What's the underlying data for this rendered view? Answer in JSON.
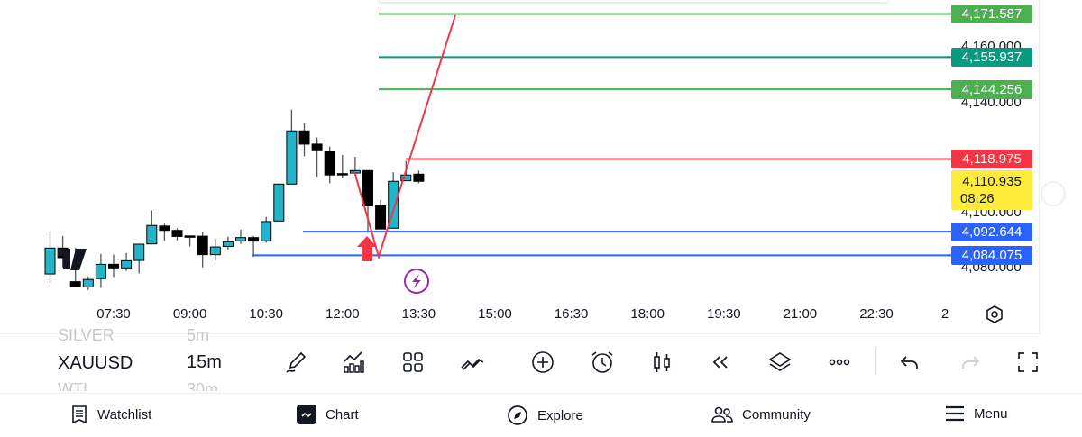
{
  "chart": {
    "price_scale": {
      "labels": [
        "4,160.000",
        "4,140.000",
        "4,100.000",
        "4,080.000"
      ],
      "values": [
        4160,
        4140,
        4100,
        4080
      ]
    },
    "time_axis": {
      "labels": [
        "07:30",
        "09:00",
        "10:30",
        "12:00",
        "13:30",
        "15:00",
        "16:30",
        "18:00",
        "19:30",
        "21:00",
        "22:30"
      ],
      "extra_label": "2"
    },
    "colors": {
      "up": "#22b5c9",
      "down": "#000000",
      "take_profit": "#4caf50",
      "teal": "#089981",
      "stop": "#f23645",
      "entry": "#2962ff",
      "current": "#ffeb3b"
    },
    "levels": [
      {
        "label": "4,171.587",
        "value": 4171.587,
        "color": "#4caf50"
      },
      {
        "label": "4,155.937",
        "value": 4155.937,
        "color": "#089981"
      },
      {
        "label": "4,144.256",
        "value": 4144.256,
        "color": "#4caf50"
      },
      {
        "label": "4,118.975",
        "value": 4118.975,
        "color": "#f23645"
      },
      {
        "label": "4,092.644",
        "value": 4092.644,
        "color": "#2962ff"
      },
      {
        "label": "4,084.075",
        "value": 4084.075,
        "color": "#2962ff"
      }
    ],
    "current_price": {
      "value": "4,110.935",
      "countdown": "08:26"
    },
    "candles_start": "06:15",
    "interval_minutes": 15,
    "candles": [
      [
        4077.3,
        4092.8,
        4074.0,
        4086.7
      ],
      [
        4086.7,
        4091.1,
        4079.7,
        4083.2
      ],
      [
        4074.5,
        4086.8,
        4072.7,
        4072.7
      ],
      [
        4072.6,
        4076.4,
        4071.5,
        4075.3
      ],
      [
        4075.6,
        4084.6,
        4072.3,
        4080.8
      ],
      [
        4080.8,
        4084.3,
        4076.2,
        4079.5
      ],
      [
        4079.5,
        4084.9,
        4078.4,
        4082.1
      ],
      [
        4082.2,
        4088.1,
        4077.5,
        4088.1
      ],
      [
        4088.2,
        4100.4,
        4088.2,
        4094.9
      ],
      [
        4094.7,
        4095.5,
        4089.3,
        4093.1
      ],
      [
        4093.1,
        4093.9,
        4089.5,
        4090.9
      ],
      [
        4091.1,
        4091.1,
        4087.3,
        4091.0
      ],
      [
        4091.0,
        4092.6,
        4079.7,
        4084.3
      ],
      [
        4084.3,
        4089.9,
        4082.1,
        4087.1
      ],
      [
        4087.3,
        4090.8,
        4086.2,
        4089.0
      ],
      [
        4089.3,
        4093.4,
        4088.2,
        4090.5
      ],
      [
        4090.5,
        4091.1,
        4083.5,
        4089.2
      ],
      [
        4089.3,
        4098.0,
        4088.6,
        4096.3
      ],
      [
        4096.5,
        4109.9,
        4096.5,
        4109.9
      ],
      [
        4109.9,
        4136.9,
        4109.9,
        4129.2
      ],
      [
        4129.2,
        4132.0,
        4120.0,
        4124.4
      ],
      [
        4124.4,
        4126.8,
        4112.6,
        4122.0
      ],
      [
        4121.6,
        4123.5,
        4110.2,
        4113.2
      ],
      [
        4113.7,
        4120.5,
        4112.2,
        4113.5
      ],
      [
        4113.9,
        4119.8,
        4113.7,
        4114.8
      ],
      [
        4114.8,
        4114.8,
        4092.2,
        4102.0
      ],
      [
        4102.0,
        4104.2,
        4093.6,
        4093.6
      ],
      [
        4093.9,
        4114.2,
        4093.9,
        4110.9
      ],
      [
        4111.1,
        4118.3,
        4111.1,
        4113.2
      ],
      [
        4113.5,
        4114.8,
        4110.2,
        4110.9
      ]
    ]
  },
  "symbols": {
    "prev": {
      "name": "SILVER",
      "interval": "5m"
    },
    "current": {
      "name": "XAUUSD",
      "interval": "15m"
    },
    "next": {
      "name": "WTI",
      "interval": "30m"
    }
  },
  "toolbar_icons": [
    "pencil-icon",
    "indicators-icon",
    "layouts-grid-icon",
    "patterns-icon",
    "add-icon",
    "alert-clock-icon",
    "candle-type-icon",
    "replay-icon",
    "layers-icon",
    "more-icon",
    "undo-icon",
    "redo-icon",
    "fullscreen-icon"
  ],
  "nav": {
    "items": [
      {
        "label": "Watchlist",
        "icon": "watchlist-icon"
      },
      {
        "label": "Chart",
        "icon": "chart-icon"
      },
      {
        "label": "Explore",
        "icon": "compass-icon"
      },
      {
        "label": "Community",
        "icon": "community-icon"
      },
      {
        "label": "Menu",
        "icon": "menu-icon"
      }
    ]
  }
}
